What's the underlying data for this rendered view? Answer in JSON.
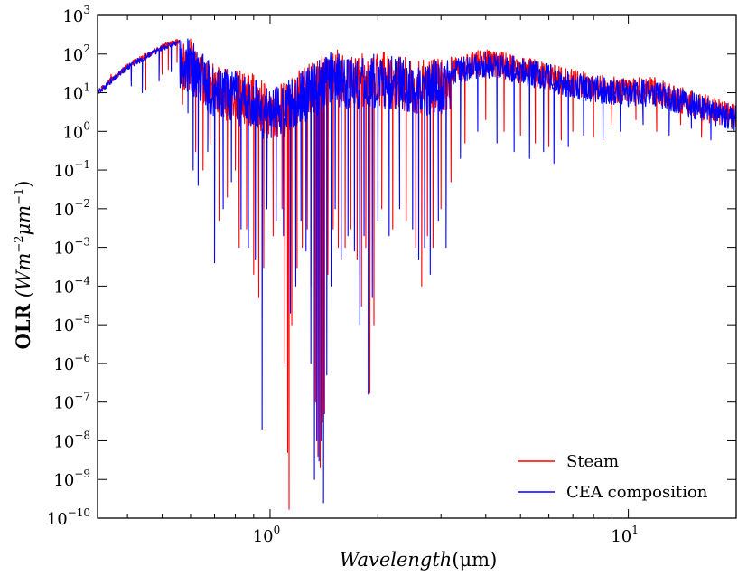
{
  "chart_data": {
    "type": "line",
    "title": "",
    "xlabel": {
      "italic": "Wavelength",
      "unit": "(μm)"
    },
    "ylabel": {
      "bold": "OLR",
      "unit": "(Wm",
      "exp1": "−2",
      "mid": "μm",
      "exp2": "−1",
      "close": ")"
    },
    "xscale": "log",
    "yscale": "log",
    "xlim": [
      0.33,
      20.0
    ],
    "ylim": [
      1e-10,
      1000
    ],
    "xticks": [
      {
        "value": 1,
        "base": "10",
        "exp": "0"
      },
      {
        "value": 10,
        "base": "10",
        "exp": "1"
      }
    ],
    "yticks": [
      {
        "value": 1000,
        "base": "10",
        "exp": "3"
      },
      {
        "value": 100,
        "base": "10",
        "exp": "2"
      },
      {
        "value": 10,
        "base": "10",
        "exp": "1"
      },
      {
        "value": 1,
        "base": "10",
        "exp": "0"
      },
      {
        "value": 0.1,
        "base": "10",
        "exp": "−1"
      },
      {
        "value": 0.01,
        "base": "10",
        "exp": "−2"
      },
      {
        "value": 0.001,
        "base": "10",
        "exp": "−3"
      },
      {
        "value": 0.0001,
        "base": "10",
        "exp": "−4"
      },
      {
        "value": 1e-05,
        "base": "10",
        "exp": "−5"
      },
      {
        "value": 1e-06,
        "base": "10",
        "exp": "−6"
      },
      {
        "value": 1e-07,
        "base": "10",
        "exp": "−7"
      },
      {
        "value": 1e-08,
        "base": "10",
        "exp": "−8"
      },
      {
        "value": 1e-09,
        "base": "10",
        "exp": "−9"
      },
      {
        "value": 1e-10,
        "base": "10",
        "exp": "−10"
      }
    ],
    "legend_position": "lower-right",
    "series": [
      {
        "name": "Steam",
        "color": "#ff0000",
        "envelope": [
          [
            0.33,
            12
          ],
          [
            0.4,
            60
          ],
          [
            0.5,
            180
          ],
          [
            0.58,
            300
          ],
          [
            0.6,
            250
          ],
          [
            0.7,
            60
          ],
          [
            0.8,
            40
          ],
          [
            0.9,
            30
          ],
          [
            1.0,
            15
          ],
          [
            1.1,
            20
          ],
          [
            1.2,
            40
          ],
          [
            1.3,
            60
          ],
          [
            1.4,
            90
          ],
          [
            1.5,
            150
          ],
          [
            1.7,
            100
          ],
          [
            2.0,
            120
          ],
          [
            2.3,
            90
          ],
          [
            2.6,
            70
          ],
          [
            3.0,
            80
          ],
          [
            3.5,
            100
          ],
          [
            4.0,
            140
          ],
          [
            4.5,
            110
          ],
          [
            5.0,
            90
          ],
          [
            6.0,
            60
          ],
          [
            7.0,
            40
          ],
          [
            8.0,
            30
          ],
          [
            10.0,
            25
          ],
          [
            12.0,
            25
          ],
          [
            14.0,
            15
          ],
          [
            17.0,
            8
          ],
          [
            20.0,
            6
          ]
        ],
        "dips": [
          [
            0.36,
            30
          ],
          [
            0.41,
            20
          ],
          [
            0.45,
            12
          ],
          [
            0.5,
            30
          ],
          [
            0.52,
            40
          ],
          [
            0.55,
            60
          ],
          [
            0.57,
            5
          ],
          [
            0.62,
            0.3
          ],
          [
            0.65,
            0.1
          ],
          [
            0.68,
            0.5
          ],
          [
            0.72,
            0.005
          ],
          [
            0.76,
            0.02
          ],
          [
            0.8,
            0.1
          ],
          [
            0.82,
            0.001
          ],
          [
            0.86,
            0.003
          ],
          [
            0.9,
            0.0002
          ],
          [
            0.93,
            5e-05
          ],
          [
            0.96,
            0.0003
          ],
          [
            1.02,
            0.002
          ],
          [
            1.08,
            0.01
          ],
          [
            1.1,
            1e-06
          ],
          [
            1.12,
            5e-09
          ],
          [
            1.13,
            1.7e-10
          ],
          [
            1.15,
            1e-05
          ],
          [
            1.19,
            0.0003
          ],
          [
            1.23,
            0.001
          ],
          [
            1.27,
            0.003
          ],
          [
            1.3,
            0.0001
          ],
          [
            1.34,
            1e-07
          ],
          [
            1.36,
            4e-09
          ],
          [
            1.38,
            2e-09
          ],
          [
            1.4,
            3e-08
          ],
          [
            1.42,
            5e-08
          ],
          [
            1.45,
            0.0002
          ],
          [
            1.5,
            0.003
          ],
          [
            1.55,
            0.001
          ],
          [
            1.62,
            0.001
          ],
          [
            1.68,
            0.003
          ],
          [
            1.75,
            0.0005
          ],
          [
            1.8,
            3e-05
          ],
          [
            1.85,
            0.001
          ],
          [
            1.9,
            1.7e-07
          ],
          [
            1.95,
            1e-05
          ],
          [
            2.05,
            0.01
          ],
          [
            2.2,
            0.003
          ],
          [
            2.4,
            0.005
          ],
          [
            2.55,
            0.001
          ],
          [
            2.65,
            0.0001
          ],
          [
            2.75,
            0.002
          ],
          [
            2.85,
            0.001
          ],
          [
            3.0,
            0.01
          ],
          [
            3.2,
            0.05
          ],
          [
            3.5,
            0.5
          ],
          [
            4.0,
            2
          ],
          [
            4.5,
            1
          ],
          [
            5.0,
            0.8
          ],
          [
            5.5,
            0.5
          ],
          [
            6.0,
            0.4
          ],
          [
            6.5,
            0.6
          ],
          [
            7.0,
            1
          ],
          [
            8.0,
            0.7
          ],
          [
            9.0,
            1.5
          ],
          [
            10.5,
            2
          ],
          [
            12.0,
            1
          ],
          [
            14.0,
            1.5
          ],
          [
            16.0,
            0.7
          ],
          [
            18.0,
            1.5
          ]
        ]
      },
      {
        "name": "CEA composition",
        "color": "#0000ff",
        "envelope": [
          [
            0.33,
            12
          ],
          [
            0.4,
            55
          ],
          [
            0.5,
            170
          ],
          [
            0.58,
            280
          ],
          [
            0.6,
            230
          ],
          [
            0.7,
            50
          ],
          [
            0.8,
            35
          ],
          [
            0.9,
            25
          ],
          [
            1.0,
            12
          ],
          [
            1.1,
            18
          ],
          [
            1.2,
            35
          ],
          [
            1.3,
            50
          ],
          [
            1.4,
            80
          ],
          [
            1.5,
            120
          ],
          [
            1.7,
            90
          ],
          [
            2.0,
            100
          ],
          [
            2.3,
            80
          ],
          [
            2.6,
            60
          ],
          [
            3.0,
            70
          ],
          [
            3.5,
            90
          ],
          [
            4.0,
            120
          ],
          [
            4.5,
            100
          ],
          [
            5.0,
            80
          ],
          [
            6.0,
            55
          ],
          [
            7.0,
            35
          ],
          [
            8.0,
            28
          ],
          [
            10.0,
            22
          ],
          [
            12.0,
            22
          ],
          [
            14.0,
            14
          ],
          [
            17.0,
            7
          ],
          [
            20.0,
            5
          ]
        ],
        "dips": [
          [
            0.36,
            25
          ],
          [
            0.41,
            15
          ],
          [
            0.44,
            10
          ],
          [
            0.49,
            20
          ],
          [
            0.53,
            35
          ],
          [
            0.56,
            40
          ],
          [
            0.59,
            3
          ],
          [
            0.61,
            0.1
          ],
          [
            0.63,
            0.04
          ],
          [
            0.67,
            0.3
          ],
          [
            0.7,
            0.0004
          ],
          [
            0.74,
            0.01
          ],
          [
            0.78,
            0.05
          ],
          [
            0.83,
            0.003
          ],
          [
            0.87,
            0.001
          ],
          [
            0.91,
            0.0005
          ],
          [
            0.95,
            2e-08
          ],
          [
            0.98,
            0.01
          ],
          [
            1.04,
            0.005
          ],
          [
            1.09,
            0.002
          ],
          [
            1.14,
            2e-05
          ],
          [
            1.18,
            0.0001
          ],
          [
            1.22,
            0.005
          ],
          [
            1.26,
            0.0008
          ],
          [
            1.3,
            1e-06
          ],
          [
            1.33,
            1e-09
          ],
          [
            1.35,
            1e-08
          ],
          [
            1.37,
            3e-09
          ],
          [
            1.39,
            1e-08
          ],
          [
            1.41,
            2.5e-10
          ],
          [
            1.44,
            5e-07
          ],
          [
            1.48,
            0.0001
          ],
          [
            1.52,
            0.01
          ],
          [
            1.58,
            0.0005
          ],
          [
            1.65,
            0.002
          ],
          [
            1.72,
            0.0008
          ],
          [
            1.78,
            1e-05
          ],
          [
            1.83,
            0.002
          ],
          [
            1.88,
            1.6e-07
          ],
          [
            1.93,
            5e-05
          ],
          [
            2.0,
            0.005
          ],
          [
            2.15,
            0.002
          ],
          [
            2.3,
            0.01
          ],
          [
            2.5,
            0.003
          ],
          [
            2.6,
            0.0005
          ],
          [
            2.7,
            0.001
          ],
          [
            2.8,
            0.0002
          ],
          [
            2.95,
            0.005
          ],
          [
            3.1,
            0.001
          ],
          [
            3.4,
            0.2
          ],
          [
            3.8,
            1
          ],
          [
            4.3,
            0.5
          ],
          [
            4.8,
            0.3
          ],
          [
            5.3,
            0.2
          ],
          [
            5.8,
            0.3
          ],
          [
            6.2,
            0.15
          ],
          [
            6.8,
            0.4
          ],
          [
            7.5,
            0.8
          ],
          [
            8.5,
            0.6
          ],
          [
            9.5,
            1
          ],
          [
            11.0,
            1.5
          ],
          [
            13.0,
            0.8
          ],
          [
            15.0,
            1.2
          ],
          [
            17.0,
            0.6
          ],
          [
            19.0,
            1.2
          ]
        ]
      }
    ]
  }
}
